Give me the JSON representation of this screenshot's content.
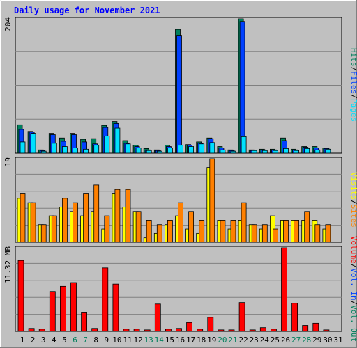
{
  "title": "Daily usage for November 2021",
  "colors": {
    "background": "#c0c0c0",
    "title": "#0000ff",
    "hits": "#00805c",
    "files": "#0040ff",
    "pages": "#00e0ff",
    "visits": "#ffff00",
    "sites": "#ff8000",
    "kbytes": "#ff0000"
  },
  "chart_data": [
    {
      "type": "bar",
      "title": "Daily usage for November 2021",
      "ymax_label": "204",
      "ylim": [
        0,
        204
      ],
      "legend": [
        "Hits",
        "/",
        "Files",
        "/",
        "Pages"
      ],
      "series": [
        {
          "name": "Hits",
          "values": [
            43,
            33,
            5,
            30,
            23,
            30,
            21,
            22,
            42,
            48,
            19,
            12,
            7,
            5,
            12,
            188,
            13,
            17,
            23,
            10,
            5,
            204,
            5,
            6,
            6,
            23,
            6,
            10,
            10,
            8,
            0
          ]
        },
        {
          "name": "Files",
          "values": [
            36,
            32,
            4,
            28,
            18,
            28,
            17,
            14,
            39,
            45,
            15,
            10,
            5,
            4,
            10,
            178,
            12,
            15,
            22,
            8,
            4,
            200,
            4,
            5,
            5,
            19,
            5,
            9,
            8,
            7,
            0
          ]
        },
        {
          "name": "Pages",
          "values": [
            17,
            30,
            3,
            15,
            10,
            8,
            6,
            12,
            26,
            38,
            14,
            8,
            4,
            3,
            8,
            12,
            10,
            14,
            16,
            5,
            3,
            25,
            4,
            4,
            4,
            7,
            4,
            7,
            5,
            6,
            0
          ]
        }
      ]
    },
    {
      "type": "bar",
      "ymax_label": "19",
      "ylim": [
        0,
        19
      ],
      "legend": [
        "Visits",
        "/",
        "Sites"
      ],
      "series": [
        {
          "name": "Visits",
          "values": [
            10,
            9,
            4,
            6,
            8,
            7,
            6,
            7,
            3,
            11,
            8,
            7,
            1,
            2,
            4,
            6,
            3,
            2,
            17,
            5,
            3,
            5,
            4,
            3,
            6,
            5,
            5,
            5,
            5,
            3,
            0
          ]
        },
        {
          "name": "Sites",
          "values": [
            11,
            9,
            4,
            6,
            10,
            9,
            11,
            13,
            6,
            12,
            12,
            7,
            5,
            4,
            5,
            9,
            7,
            5,
            19,
            5,
            5,
            9,
            4,
            4,
            3,
            5,
            5,
            7,
            4,
            4,
            0
          ]
        }
      ]
    },
    {
      "type": "bar",
      "ymax_label": "11.32 MB",
      "ylim": [
        0,
        11.32
      ],
      "legend": [
        "Volume",
        "/",
        "Vol. In",
        "/",
        "Vol. Out"
      ],
      "series": [
        {
          "name": "Volume",
          "values": [
            9.6,
            0.4,
            0.3,
            5.4,
            6.1,
            6.6,
            2.6,
            0.4,
            8.6,
            6.4,
            0.3,
            0.3,
            0.2,
            3.7,
            0.3,
            0.4,
            1.2,
            0.3,
            1.9,
            0.2,
            0.2,
            3.9,
            0.2,
            0.5,
            0.3,
            11.32,
            3.8,
            0.8,
            1.1,
            0.2,
            0
          ]
        },
        {
          "name": "Vol. In",
          "values": [
            0,
            0,
            0,
            0,
            0,
            0,
            0,
            0,
            0,
            0,
            0,
            0,
            0,
            0,
            0,
            0,
            0,
            0,
            0,
            0,
            0,
            0,
            0,
            0,
            0,
            0,
            0,
            0,
            0,
            0,
            0
          ]
        },
        {
          "name": "Vol. Out",
          "values": [
            0,
            0,
            0,
            0,
            0,
            0,
            0,
            0,
            0,
            0,
            0,
            0,
            0,
            0,
            0,
            0,
            0,
            0,
            0,
            0,
            0,
            0,
            0,
            0,
            0,
            0,
            0,
            0,
            0,
            0,
            0
          ]
        }
      ]
    }
  ],
  "days": [
    "1",
    "2",
    "3",
    "4",
    "5",
    "6",
    "7",
    "8",
    "9",
    "10",
    "11",
    "12",
    "13",
    "14",
    "15",
    "16",
    "17",
    "18",
    "19",
    "20",
    "21",
    "22",
    "23",
    "24",
    "25",
    "26",
    "27",
    "28",
    "29",
    "30",
    "31"
  ],
  "weekend_days": [
    6,
    7,
    13,
    14,
    20,
    21,
    27,
    28
  ]
}
